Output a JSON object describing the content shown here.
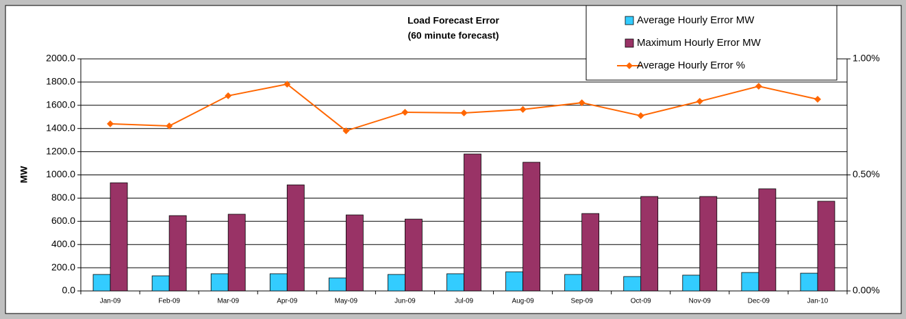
{
  "chart_data": {
    "type": "bar-line",
    "title": "Load Forecast Error",
    "subtitle": "(60 minute forecast)",
    "y_label": "MW",
    "categories": [
      "Jan-09",
      "Feb-09",
      "Mar-09",
      "Apr-09",
      "May-09",
      "Jun-09",
      "Jul-09",
      "Aug-09",
      "Sep-09",
      "Oct-09",
      "Nov-09",
      "Dec-09",
      "Jan-10"
    ],
    "series": [
      {
        "name": "Average Hourly Error MW",
        "color": "#33ccff",
        "type": "bar",
        "values": [
          142,
          130,
          148,
          148,
          112,
          142,
          148,
          165,
          142,
          124,
          136,
          159,
          153
        ]
      },
      {
        "name": "Maximum Hourly Error MW",
        "color": "#993366",
        "type": "bar",
        "values": [
          932,
          649,
          661,
          914,
          655,
          619,
          1180,
          1109,
          667,
          814,
          814,
          880,
          773
        ]
      },
      {
        "name": "Average Hourly Error %",
        "color": "#ff6600",
        "type": "line",
        "axis": "y2",
        "values": [
          0.72,
          0.711,
          0.841,
          0.891,
          0.69,
          0.77,
          0.767,
          0.782,
          0.811,
          0.755,
          0.817,
          0.882,
          0.826
        ]
      }
    ],
    "ylim": [
      0,
      2000
    ],
    "yticks": [
      {
        "value": 0,
        "label": "0.0"
      },
      {
        "value": 200,
        "label": "200.0"
      },
      {
        "value": 400,
        "label": "400.0"
      },
      {
        "value": 600,
        "label": "600.0"
      },
      {
        "value": 800,
        "label": "800.0"
      },
      {
        "value": 1000,
        "label": "1000.0"
      },
      {
        "value": 1200,
        "label": "1200.0"
      },
      {
        "value": 1400,
        "label": "1400.0"
      },
      {
        "value": 1600,
        "label": "1600.0"
      },
      {
        "value": 1800,
        "label": "1800.0"
      },
      {
        "value": 2000,
        "label": "2000.0"
      }
    ],
    "y2lim": [
      0,
      1
    ],
    "y2ticks": [
      {
        "value": 0,
        "label": "0.00%"
      },
      {
        "value": 0.5,
        "label": "0.50%"
      },
      {
        "value": 1,
        "label": "1.00%"
      }
    ],
    "grid": true,
    "legend": "top-right"
  }
}
